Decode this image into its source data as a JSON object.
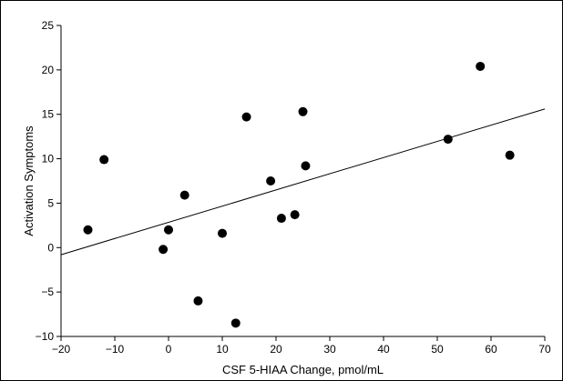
{
  "chart_data": {
    "type": "scatter",
    "title": "",
    "xlabel": "CSF 5-HIAA Change, pmol/mL",
    "ylabel": "Activation Symptoms",
    "xlim": [
      -20,
      70
    ],
    "ylim": [
      -10,
      25
    ],
    "x_ticks": [
      -20,
      -10,
      0,
      10,
      20,
      30,
      40,
      50,
      60,
      70
    ],
    "y_ticks": [
      -10,
      -5,
      0,
      5,
      10,
      15,
      20,
      25
    ],
    "x_tick_labels": [
      "−20",
      "−10",
      "0",
      "10",
      "20",
      "30",
      "40",
      "50",
      "60",
      "70"
    ],
    "y_tick_labels": [
      "−10",
      "−5",
      "0",
      "5",
      "10",
      "15",
      "20",
      "25"
    ],
    "grid": false,
    "points": [
      {
        "x": -15,
        "y": 2.0
      },
      {
        "x": -12,
        "y": 9.9
      },
      {
        "x": -1,
        "y": -0.2
      },
      {
        "x": 0,
        "y": 2.0
      },
      {
        "x": 3,
        "y": 5.9
      },
      {
        "x": 5.5,
        "y": -6.0
      },
      {
        "x": 10,
        "y": 1.6
      },
      {
        "x": 12.5,
        "y": -8.5
      },
      {
        "x": 14.5,
        "y": 14.7
      },
      {
        "x": 19,
        "y": 7.5
      },
      {
        "x": 21,
        "y": 3.3
      },
      {
        "x": 23.5,
        "y": 3.7
      },
      {
        "x": 25,
        "y": 15.3
      },
      {
        "x": 25.5,
        "y": 9.2
      },
      {
        "x": 52,
        "y": 12.2
      },
      {
        "x": 58,
        "y": 20.4
      },
      {
        "x": 63.5,
        "y": 10.4
      }
    ],
    "trendline": {
      "x": [
        -20,
        70
      ],
      "y": [
        -0.8,
        15.6
      ]
    }
  }
}
